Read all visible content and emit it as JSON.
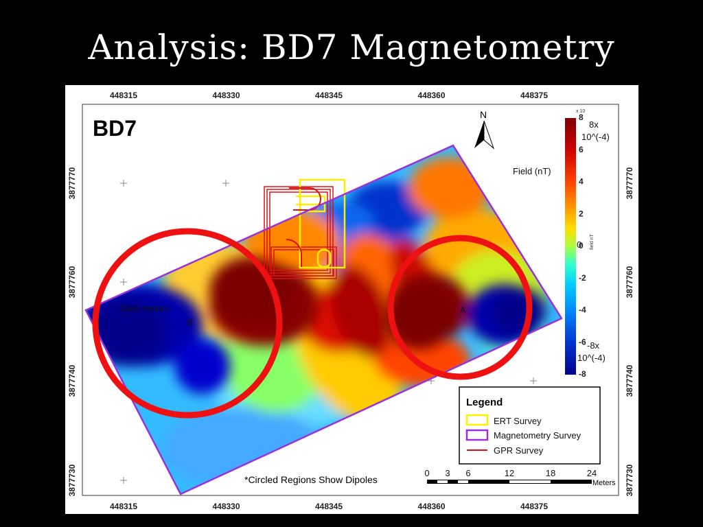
{
  "slide": {
    "title": "Analysis: BD7 Magnetometry"
  },
  "map": {
    "panel_label": "BD7",
    "north_label": "N",
    "x_ticks": [
      "448315",
      "448330",
      "448345",
      "448360",
      "448375"
    ],
    "y_ticks": [
      "3877770",
      "3877760",
      "3877740",
      "3877730"
    ],
    "field_label": "Field (nT)",
    "colorbar": {
      "max_label_line1": "8x",
      "max_label_line2": "10^(-4)",
      "zero_label": "0",
      "min_label_line1": "-8x",
      "min_label_line2": "10^(-4)",
      "exponent_label": "x 10",
      "tick_values": [
        "8",
        "6",
        "4",
        "2",
        "0",
        "-2",
        "-4",
        "-6",
        "-8"
      ],
      "axis_title": "field nT",
      "colors": [
        "#7f0000",
        "#cc0000",
        "#ff3300",
        "#ff8800",
        "#ffcc00",
        "#ccff33",
        "#33ff99",
        "#00e5ff",
        "#0099ff",
        "#0033dd",
        "#00008b"
      ]
    },
    "annotations": {
      "ohm_meters": "Ohm meters",
      "label_b": "B",
      "label_a": "A",
      "note": "*Circled Regions Show Dipoles"
    },
    "legend": {
      "title": "Legend",
      "items": [
        {
          "label": "ERT Survey",
          "color": "#ffee00"
        },
        {
          "label": "Magnetometry Survey",
          "color": "#9b30d9"
        },
        {
          "label": "GPR Survey",
          "color": "#dd1111"
        }
      ]
    },
    "scale_bar": {
      "ticks": [
        "0",
        "3",
        "6",
        "12",
        "18",
        "24"
      ],
      "unit": "Meters"
    },
    "circle_color": "#ee1111"
  }
}
